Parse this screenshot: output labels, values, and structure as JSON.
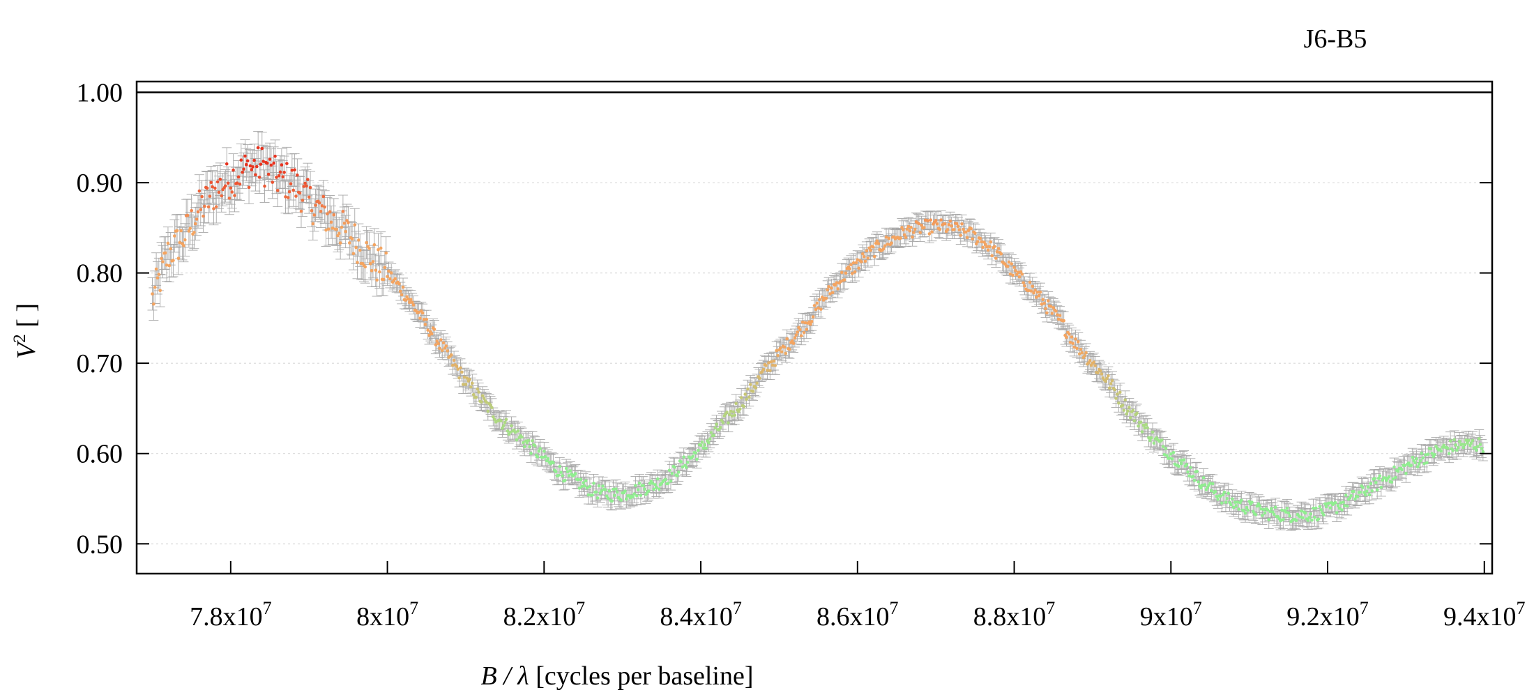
{
  "chart_data": {
    "type": "scatter",
    "title": "J6-B5",
    "xlabel_var": "B / λ",
    "xlabel_unit": "[cycles per baseline]",
    "ylabel_var": "V",
    "ylabel_exp": "2",
    "ylabel_unit": "[ ]",
    "xlim": [
      76800000,
      94100000
    ],
    "ylim": [
      0.467,
      1.012
    ],
    "x_ticks": [
      {
        "value": 78000000,
        "mant": "7.8x10",
        "exp": "7"
      },
      {
        "value": 80000000,
        "mant": "8x10",
        "exp": "7"
      },
      {
        "value": 82000000,
        "mant": "8.2x10",
        "exp": "7"
      },
      {
        "value": 84000000,
        "mant": "8.4x10",
        "exp": "7"
      },
      {
        "value": 86000000,
        "mant": "8.6x10",
        "exp": "7"
      },
      {
        "value": 88000000,
        "mant": "8.8x10",
        "exp": "7"
      },
      {
        "value": 90000000,
        "mant": "9x10",
        "exp": "7"
      },
      {
        "value": 92000000,
        "mant": "9.2x10",
        "exp": "7"
      },
      {
        "value": 94000000,
        "mant": "9.4x10",
        "exp": "7"
      }
    ],
    "y_ticks": [
      {
        "value": 0.5,
        "label": "0.50"
      },
      {
        "value": 0.6,
        "label": "0.60"
      },
      {
        "value": 0.7,
        "label": "0.70"
      },
      {
        "value": 0.8,
        "label": "0.80"
      },
      {
        "value": 0.9,
        "label": "0.90"
      },
      {
        "value": 1.0,
        "label": "1.00"
      }
    ],
    "reference_line_y": 1.0,
    "grid": "horizontal dotted",
    "legend": "none",
    "colors": {
      "errorbar": "#a8a8a8",
      "low": "#90ee90",
      "mid": "#f4a460",
      "high": "#e8321e"
    },
    "series": [
      {
        "x": [
          77000000,
          77200000,
          77400000,
          77600000,
          77800000,
          78000000,
          78200000,
          78400000,
          78600000,
          78800000,
          79000000,
          79200000,
          79400000,
          79600000,
          79800000,
          80000000,
          80200000,
          80400000,
          80600000,
          80800000,
          81000000,
          81200000,
          81400000,
          81600000,
          81800000,
          82000000,
          82200000,
          82400000,
          82600000,
          82800000,
          83000000,
          83200000,
          83400000,
          83600000,
          83800000,
          84000000,
          84200000,
          84400000,
          84600000,
          84800000,
          85000000,
          85200000,
          85400000,
          85600000,
          85800000,
          86000000,
          86200000,
          86400000,
          86600000,
          86800000,
          87000000,
          87200000,
          87400000,
          87600000,
          87800000,
          88000000,
          88200000,
          88400000,
          88600000,
          88800000,
          89000000,
          89200000,
          89400000,
          89600000,
          89800000,
          90000000,
          90200000,
          90400000,
          90600000,
          90800000,
          91000000,
          91200000,
          91400000,
          91600000,
          91800000,
          92000000,
          92200000,
          92400000,
          92600000,
          92800000,
          93000000,
          93200000,
          93400000,
          93600000,
          93800000
        ],
        "y": [
          0.77,
          0.82,
          0.84,
          0.87,
          0.89,
          0.905,
          0.915,
          0.92,
          0.905,
          0.9,
          0.88,
          0.865,
          0.85,
          0.835,
          0.815,
          0.8,
          0.78,
          0.755,
          0.73,
          0.705,
          0.68,
          0.66,
          0.64,
          0.625,
          0.61,
          0.595,
          0.58,
          0.57,
          0.56,
          0.555,
          0.555,
          0.56,
          0.565,
          0.575,
          0.59,
          0.605,
          0.625,
          0.645,
          0.665,
          0.69,
          0.71,
          0.73,
          0.75,
          0.775,
          0.795,
          0.81,
          0.825,
          0.835,
          0.845,
          0.85,
          0.852,
          0.85,
          0.845,
          0.835,
          0.82,
          0.8,
          0.785,
          0.765,
          0.745,
          0.72,
          0.7,
          0.68,
          0.655,
          0.635,
          0.615,
          0.6,
          0.585,
          0.568,
          0.555,
          0.545,
          0.54,
          0.535,
          0.533,
          0.532,
          0.533,
          0.537,
          0.545,
          0.555,
          0.565,
          0.575,
          0.585,
          0.595,
          0.603,
          0.608,
          0.61
        ]
      }
    ]
  }
}
